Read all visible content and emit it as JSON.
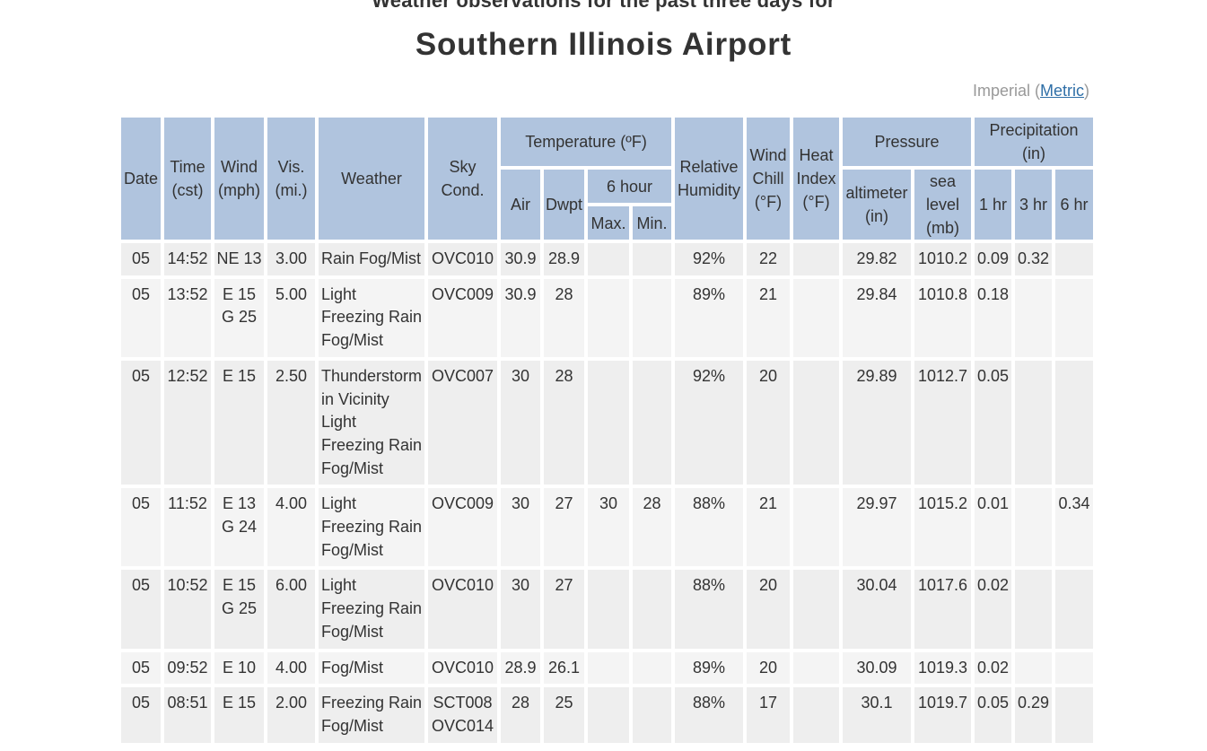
{
  "header": {
    "title_line1": "Weather observations for the past three days for",
    "title_line2": "Southern Illinois Airport"
  },
  "units": {
    "imperial": "Imperial (",
    "metric": "Metric",
    "close": ")"
  },
  "columns": {
    "date": "Date",
    "time": "Time (cst)",
    "wind": "Wind (mph)",
    "vis": "Vis. (mi.)",
    "weather": "Weather",
    "sky": "Sky Cond.",
    "temperature": "Temperature (ºF)",
    "air": "Air",
    "dwpt": "Dwpt",
    "six_hour": "6 hour",
    "max": "Max.",
    "min": "Min.",
    "humidity": "Relative Humidity",
    "wind_chill": "Wind Chill (°F)",
    "heat_index": "Heat Index (°F)",
    "pressure": "Pressure",
    "altimeter": "altimeter (in)",
    "sea_level": "sea level (mb)",
    "precipitation": "Precipitation (in)",
    "p1": "1 hr",
    "p3": "3 hr",
    "p6": "6 hr"
  },
  "rows": [
    {
      "date": "05",
      "time": "14:52",
      "wind": "NE 13",
      "vis": "3.00",
      "weather": "Rain Fog/Mist",
      "sky": "OVC010",
      "air": "30.9",
      "dwpt": "28.9",
      "max": "",
      "min": "",
      "rh": "92%",
      "chill": "22",
      "heat": "",
      "alt": "29.82",
      "sea": "1010.2",
      "p1": "0.09",
      "p3": "0.32",
      "p6": ""
    },
    {
      "date": "05",
      "time": "13:52",
      "wind": "E 15 G 25",
      "vis": "5.00",
      "weather": "Light Freezing Rain Fog/Mist",
      "sky": "OVC009",
      "air": "30.9",
      "dwpt": "28",
      "max": "",
      "min": "",
      "rh": "89%",
      "chill": "21",
      "heat": "",
      "alt": "29.84",
      "sea": "1010.8",
      "p1": "0.18",
      "p3": "",
      "p6": ""
    },
    {
      "date": "05",
      "time": "12:52",
      "wind": "E 15",
      "vis": "2.50",
      "weather": "Thunderstorm in Vicinity Light Freezing Rain Fog/Mist",
      "sky": "OVC007",
      "air": "30",
      "dwpt": "28",
      "max": "",
      "min": "",
      "rh": "92%",
      "chill": "20",
      "heat": "",
      "alt": "29.89",
      "sea": "1012.7",
      "p1": "0.05",
      "p3": "",
      "p6": ""
    },
    {
      "date": "05",
      "time": "11:52",
      "wind": "E 13 G 24",
      "vis": "4.00",
      "weather": "Light Freezing Rain Fog/Mist",
      "sky": "OVC009",
      "air": "30",
      "dwpt": "27",
      "max": "30",
      "min": "28",
      "rh": "88%",
      "chill": "21",
      "heat": "",
      "alt": "29.97",
      "sea": "1015.2",
      "p1": "0.01",
      "p3": "",
      "p6": "0.34"
    },
    {
      "date": "05",
      "time": "10:52",
      "wind": "E 15 G 25",
      "vis": "6.00",
      "weather": "Light Freezing Rain Fog/Mist",
      "sky": "OVC010",
      "air": "30",
      "dwpt": "27",
      "max": "",
      "min": "",
      "rh": "88%",
      "chill": "20",
      "heat": "",
      "alt": "30.04",
      "sea": "1017.6",
      "p1": "0.02",
      "p3": "",
      "p6": ""
    },
    {
      "date": "05",
      "time": "09:52",
      "wind": "E 10",
      "vis": "4.00",
      "weather": "Fog/Mist",
      "sky": "OVC010",
      "air": "28.9",
      "dwpt": "26.1",
      "max": "",
      "min": "",
      "rh": "89%",
      "chill": "20",
      "heat": "",
      "alt": "30.09",
      "sea": "1019.3",
      "p1": "0.02",
      "p3": "",
      "p6": ""
    },
    {
      "date": "05",
      "time": "08:51",
      "wind": "E 15",
      "vis": "2.00",
      "weather": "Freezing Rain Fog/Mist",
      "sky": "SCT008 OVC014",
      "air": "28",
      "dwpt": "25",
      "max": "",
      "min": "",
      "rh": "88%",
      "chill": "17",
      "heat": "",
      "alt": "30.1",
      "sea": "1019.7",
      "p1": "0.05",
      "p3": "0.29",
      "p6": ""
    }
  ]
}
